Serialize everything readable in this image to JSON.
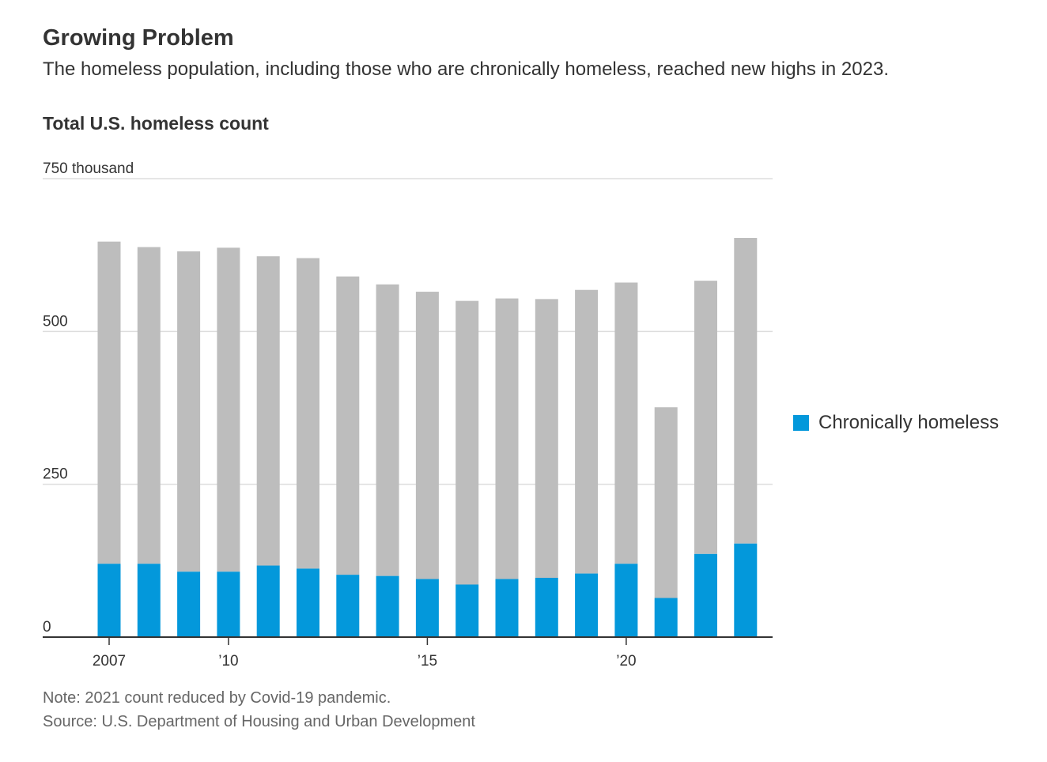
{
  "header": {
    "title": "Growing Problem",
    "subtitle": "The homeless population, including those who are chronically homeless, reached new highs in 2023.",
    "chart_title": "Total U.S. homeless count"
  },
  "footer": {
    "note": "Note: 2021 count reduced by Covid-19 pandemic.",
    "source": "Source: U.S. Department of Housing and Urban Development"
  },
  "legend": {
    "label": "Chronically homeless",
    "color": "#0398db"
  },
  "colors": {
    "total_bar": "#bdbdbd",
    "chronic_bar": "#0398db",
    "grid": "#dddddd",
    "axis": "#333333"
  },
  "chart_data": {
    "type": "bar",
    "stacked": true,
    "title": "Total U.S. homeless count",
    "xlabel": "",
    "ylabel": "",
    "ylim": [
      0,
      750
    ],
    "y_ticks": [
      {
        "value": 0,
        "label": "0"
      },
      {
        "value": 250,
        "label": "250"
      },
      {
        "value": 500,
        "label": "500"
      },
      {
        "value": 750,
        "label": "750 thousand"
      }
    ],
    "x_ticks": [
      {
        "year": 2007,
        "label": "2007"
      },
      {
        "year": 2010,
        "label": "’10"
      },
      {
        "year": 2015,
        "label": "’15"
      },
      {
        "year": 2020,
        "label": "’20"
      }
    ],
    "grid": true,
    "legend_position": "right",
    "categories": [
      2007,
      2008,
      2009,
      2010,
      2011,
      2012,
      2013,
      2014,
      2015,
      2016,
      2017,
      2018,
      2019,
      2020,
      2021,
      2022,
      2023
    ],
    "series": [
      {
        "name": "Chronically homeless",
        "color": "#0398db",
        "values": [
          120,
          120,
          107,
          107,
          117,
          112,
          102,
          100,
          95,
          86,
          95,
          97,
          104,
          120,
          64,
          136,
          153
        ]
      },
      {
        "name": "",
        "color": "#bdbdbd",
        "values": [
          527,
          518,
          524,
          530,
          506,
          508,
          488,
          477,
          470,
          464,
          459,
          456,
          464,
          460,
          312,
          447,
          500
        ]
      }
    ],
    "totals": [
      647,
      638,
      631,
      637,
      623,
      620,
      590,
      577,
      565,
      550,
      554,
      553,
      568,
      580,
      376,
      583,
      653
    ]
  }
}
